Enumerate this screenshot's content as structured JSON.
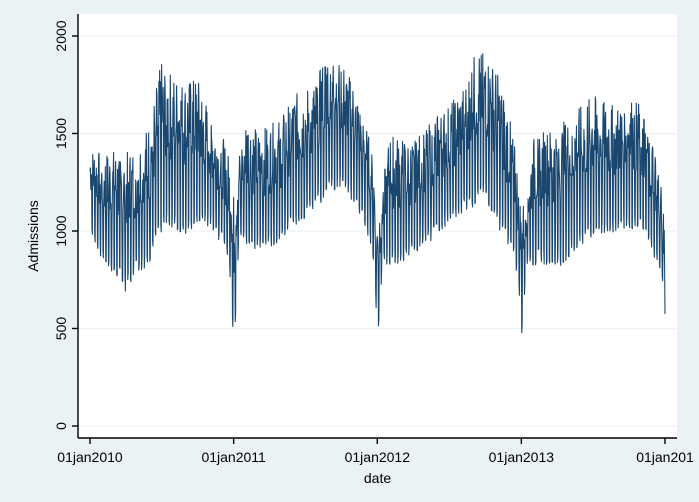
{
  "chart_data": {
    "type": "line",
    "title": "",
    "xlabel": "date",
    "ylabel": "Admissions",
    "x_ticks": [
      {
        "date": "2010-01-01",
        "label": "01jan2010"
      },
      {
        "date": "2011-01-01",
        "label": "01jan2011"
      },
      {
        "date": "2012-01-01",
        "label": "01jan2012"
      },
      {
        "date": "2013-01-01",
        "label": "01jan2013"
      },
      {
        "date": "2014-01-01",
        "label": "01jan201"
      }
    ],
    "y_ticks": [
      0,
      500,
      1000,
      1500,
      2000
    ],
    "xlim": [
      "2010-01-01",
      "2014-01-01"
    ],
    "ylim": [
      0,
      2000
    ],
    "grid": "horizontal",
    "legend": "none",
    "colors": {
      "page_background": "#eaf2f3",
      "plot_background": "#ffffff",
      "series": "#1a476f",
      "gridline": "#eaf2f3"
    },
    "series": [
      {
        "x": [
          "2010-01-01",
          "2010-02-01",
          "2010-03-01",
          "2010-04-01",
          "2010-05-01",
          "2010-06-01",
          "2010-07-01",
          "2010-08-01",
          "2010-09-01",
          "2010-10-01",
          "2010-11-01",
          "2010-12-01",
          "2010-12-15",
          "2010-12-25",
          "2011-01-01",
          "2011-01-15",
          "2011-02-01",
          "2011-03-01",
          "2011-04-01",
          "2011-05-01",
          "2011-06-01",
          "2011-07-01",
          "2011-08-01",
          "2011-09-01",
          "2011-10-01",
          "2011-11-01",
          "2011-12-01",
          "2011-12-15",
          "2011-12-25",
          "2012-01-01",
          "2012-01-15",
          "2012-02-01",
          "2012-03-01",
          "2012-04-01",
          "2012-05-01",
          "2012-06-01",
          "2012-07-01",
          "2012-08-01",
          "2012-09-01",
          "2012-10-01",
          "2012-11-01",
          "2012-12-01",
          "2012-12-15",
          "2012-12-25",
          "2013-01-01",
          "2013-01-15",
          "2013-02-01",
          "2013-03-01",
          "2013-04-01",
          "2013-05-01",
          "2013-06-01",
          "2013-07-01",
          "2013-08-01",
          "2013-09-01",
          "2013-10-01",
          "2013-11-01",
          "2013-12-01",
          "2013-12-15",
          "2013-12-25",
          "2014-01-01"
        ],
        "upper": [
          1430,
          1400,
          1420,
          1400,
          1440,
          1560,
          1870,
          1800,
          1770,
          1790,
          1620,
          1500,
          1420,
          1350,
          1200,
          1400,
          1600,
          1520,
          1540,
          1580,
          1700,
          1720,
          1780,
          1980,
          1880,
          1760,
          1560,
          1450,
          1300,
          1100,
          1250,
          1500,
          1480,
          1450,
          1540,
          1600,
          1650,
          1720,
          1900,
          1920,
          1820,
          1600,
          1440,
          1300,
          1100,
          1250,
          1480,
          1520,
          1540,
          1580,
          1640,
          1700,
          1660,
          1640,
          1690,
          1660,
          1500,
          1350,
          1180,
          1100
        ],
        "lower": [
          1000,
          820,
          760,
          670,
          770,
          800,
          960,
          980,
          960,
          1000,
          1000,
          920,
          850,
          720,
          320,
          950,
          900,
          880,
          900,
          920,
          1000,
          1040,
          1100,
          1160,
          1200,
          1130,
          1000,
          920,
          780,
          380,
          820,
          800,
          810,
          870,
          900,
          960,
          1020,
          1060,
          1100,
          1140,
          1000,
          900,
          820,
          700,
          420,
          820,
          800,
          810,
          780,
          840,
          900,
          940,
          960,
          980,
          1000,
          960,
          860,
          800,
          700,
          520
        ]
      }
    ]
  }
}
